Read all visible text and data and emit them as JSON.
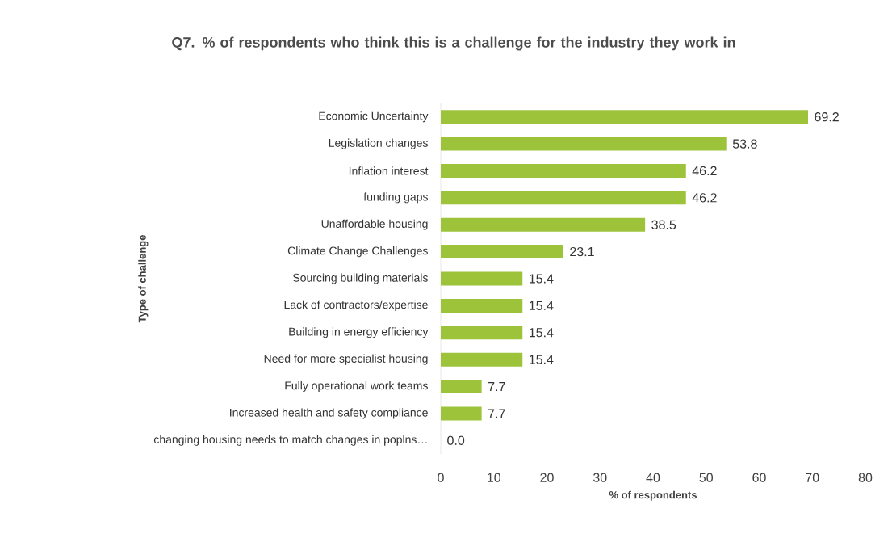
{
  "chart_data": {
    "type": "bar",
    "orientation": "horizontal",
    "title": "Q7. % of respondents who think this is a challenge for the industry they work in",
    "xlabel": "% of respondents",
    "ylabel": "Type of challenge",
    "categories": [
      "Economic Uncertainty",
      "Legislation changes",
      "Inflation interest",
      "funding gaps",
      "Unaffordable housing",
      "Climate Change Challenges",
      "Sourcing building materials",
      "Lack of contractors/expertise",
      "Building in energy efficiency",
      "Need for more specialist housing",
      "Fully operational work teams",
      "Increased health and safety compliance",
      "changing housing needs to match changes in poplns…"
    ],
    "values": [
      69.2,
      53.8,
      46.2,
      46.2,
      38.5,
      23.1,
      15.4,
      15.4,
      15.4,
      15.4,
      7.7,
      7.7,
      0.0
    ],
    "value_labels": [
      "69.2",
      "53.8",
      "46.2",
      "46.2",
      "38.5",
      "23.1",
      "15.4",
      "15.4",
      "15.4",
      "15.4",
      "7.7",
      "7.7",
      "0.0"
    ],
    "color": "#9dc33b",
    "xlim": [
      0,
      80
    ],
    "xticks": [
      0,
      10,
      20,
      30,
      40,
      50,
      60,
      70,
      80
    ]
  }
}
